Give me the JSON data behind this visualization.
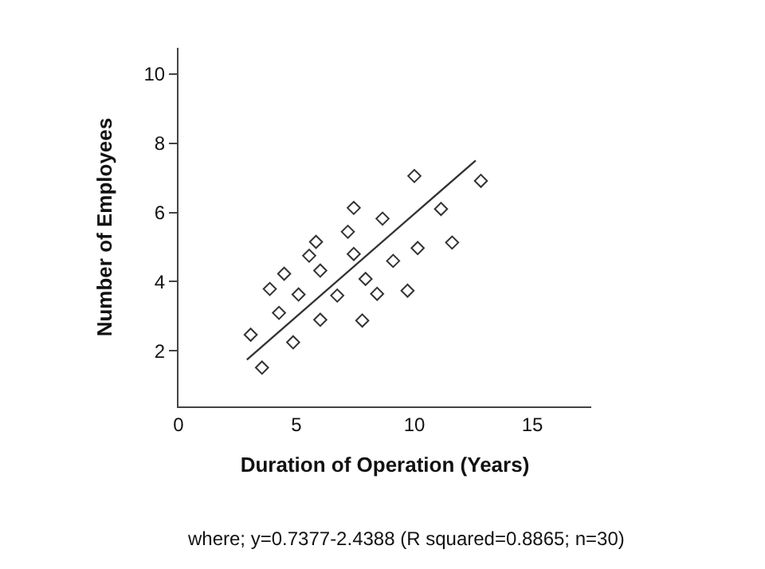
{
  "chart_data": {
    "type": "scatter",
    "xlabel": "Duration of Operation (Years)",
    "ylabel": "Number of Employees",
    "annotations": [
      "where; y=0.7377-2.4388 (R squared=0.8865; n=30)"
    ],
    "xlim": [
      0,
      17.5
    ],
    "xticks": [
      0,
      5,
      10,
      15
    ],
    "ylim": [
      0.4,
      10.75
    ],
    "yticks": [
      2,
      4,
      6,
      8,
      10
    ],
    "grid": false,
    "series": [
      {
        "marker": "diamond",
        "color": "#333333",
        "x": [
          3.06,
          3.54,
          3.87,
          4.26,
          4.48,
          4.86,
          5.09,
          5.54,
          5.83,
          6.01,
          6.01,
          6.73,
          7.18,
          7.43,
          7.43,
          7.79,
          7.93,
          8.42,
          8.65,
          9.1,
          9.71,
          10.0,
          10.14,
          11.13,
          11.6,
          12.82
        ],
        "values": [
          2.47,
          1.52,
          3.79,
          3.1,
          4.23,
          2.25,
          3.63,
          4.75,
          5.15,
          4.32,
          2.9,
          3.6,
          5.44,
          6.13,
          4.8,
          2.88,
          4.08,
          3.65,
          5.82,
          4.6,
          3.74,
          7.05,
          4.97,
          6.1,
          5.13,
          6.91
        ]
      },
      {
        "type": "line",
        "marker": "none",
        "color": "#333333",
        "line_style": "solid",
        "x": [
          2.9,
          12.6
        ],
        "values": [
          1.75,
          7.5
        ]
      }
    ]
  }
}
